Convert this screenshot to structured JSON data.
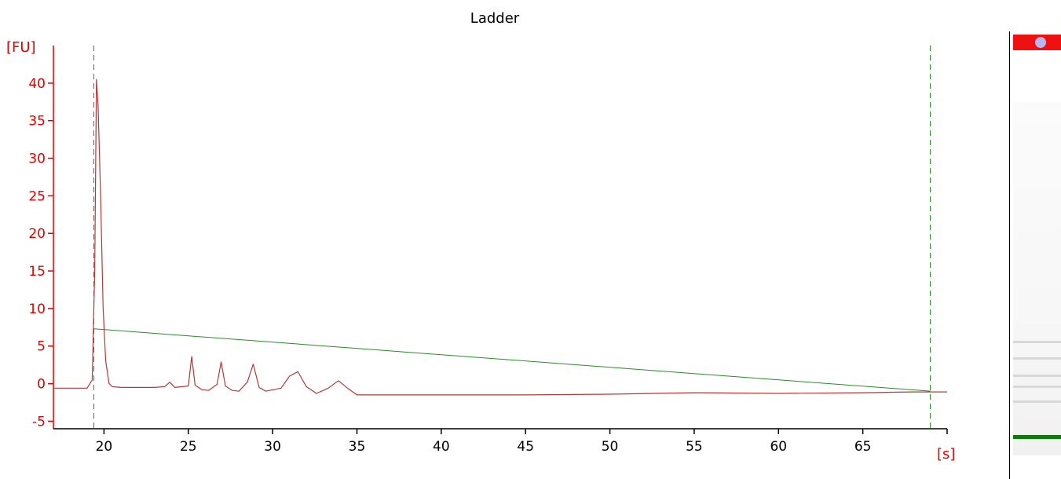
{
  "chart_data": {
    "type": "line",
    "title": "Ladder",
    "xlabel": "[s]",
    "ylabel": "[FU]",
    "xlim": [
      17,
      70
    ],
    "ylim": [
      -6,
      45
    ],
    "x_ticks": [
      20,
      25,
      30,
      35,
      40,
      45,
      50,
      55,
      60,
      65
    ],
    "y_ticks": [
      -5,
      0,
      5,
      10,
      15,
      20,
      25,
      30,
      35,
      40
    ],
    "grid": false,
    "colors": {
      "axis": "#e00000",
      "signal": "#b33a3a",
      "baseline": "#2a8a2a",
      "marker_line": "#2a8a2a"
    },
    "series": [
      {
        "x": [
          17,
          19.0,
          19.3,
          19.45,
          19.55,
          19.65,
          19.8,
          19.95,
          20.1,
          20.3,
          20.5,
          21,
          23,
          23.6,
          23.9,
          24.2,
          25.0,
          25.2,
          25.4,
          25.8,
          26.2,
          26.7,
          26.95,
          27.2,
          27.6,
          28.0,
          28.5,
          28.85,
          29.2,
          29.6,
          30.5,
          31.0,
          31.5,
          32.0,
          32.6,
          33.3,
          33.9,
          34.5,
          35.0,
          36,
          40,
          45,
          50,
          55,
          60,
          65,
          68,
          70
        ],
        "y": [
          -0.6,
          -0.6,
          0.5,
          15,
          40.5,
          37,
          25,
          10,
          3,
          0,
          -0.4,
          -0.5,
          -0.5,
          -0.4,
          0.2,
          -0.5,
          -0.3,
          3.6,
          -0.2,
          -0.8,
          -0.9,
          -0.1,
          2.9,
          -0.3,
          -0.9,
          -1.0,
          0.2,
          2.6,
          -0.5,
          -1.0,
          -0.6,
          1.0,
          1.6,
          -0.4,
          -1.3,
          -0.6,
          0.4,
          -0.7,
          -1.5,
          -1.5,
          -1.5,
          -1.5,
          -1.4,
          -1.2,
          -1.3,
          -1.2,
          -1.1,
          -1.1
        ]
      }
    ],
    "baseline": {
      "x": [
        19.4,
        69.0
      ],
      "y": [
        7.3,
        -1.0
      ]
    },
    "marker_lines_x": [
      19.4,
      69.0
    ]
  },
  "gel": {
    "colors": {
      "well": "#ee1111",
      "well_dot": "#b9b6ee",
      "band": "#d8d8d8",
      "marker_band": "#0e7a0e"
    }
  }
}
